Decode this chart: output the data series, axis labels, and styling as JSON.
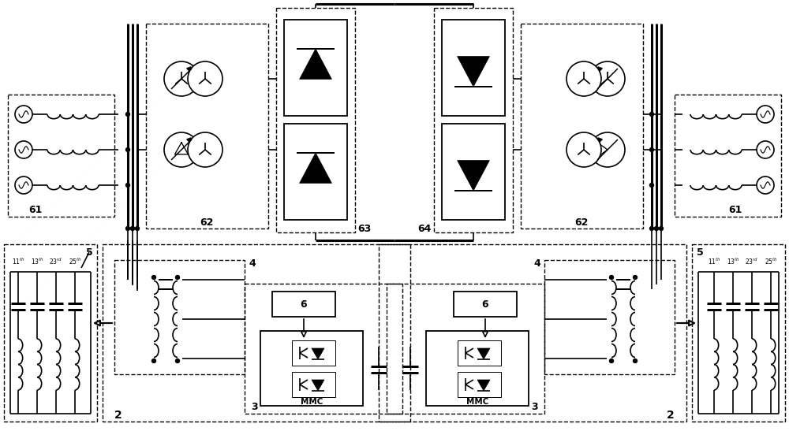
{
  "fig_width": 10.0,
  "fig_height": 5.47,
  "dpi": 100,
  "bg_color": "#ffffff",
  "lc": "#000000",
  "lw": 1.2,
  "tlw": 2.2,
  "blw": 1.0
}
